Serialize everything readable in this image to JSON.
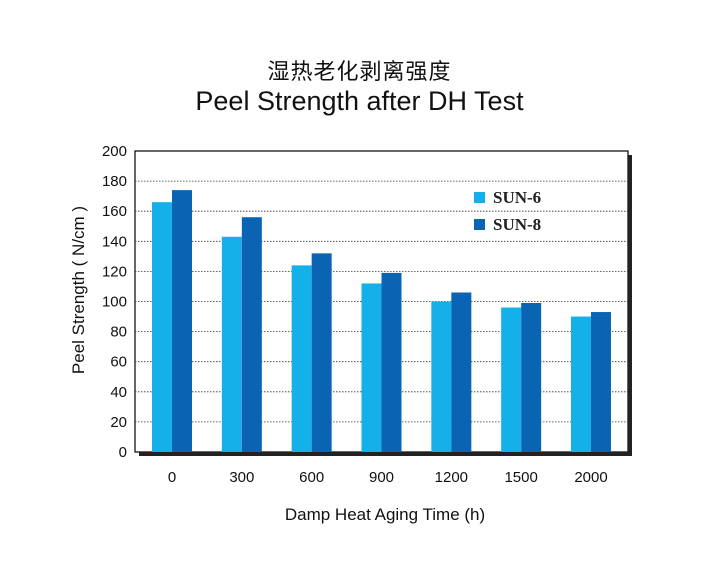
{
  "chart_data": {
    "type": "bar",
    "title": "湿热老化剥离强度",
    "subtitle": "Peel Strength after DH Test",
    "xlabel": "Damp Heat Aging Time (h)",
    "ylabel": "Peel Strength ( N/cm )",
    "ylim": [
      0,
      200
    ],
    "yticks": [
      "0",
      "20",
      "40",
      "60",
      "80",
      "100",
      "120",
      "140",
      "160",
      "180",
      "200"
    ],
    "categories": [
      "0",
      "300",
      "600",
      "900",
      "1200",
      "1500",
      "2000"
    ],
    "grid": true,
    "legend_position": "top-right",
    "series": [
      {
        "name": "SUN-6",
        "color": "#13b0ea",
        "values": [
          166,
          143,
          124,
          112,
          100,
          96,
          90
        ]
      },
      {
        "name": "SUN-8",
        "color": "#0b64b3",
        "values": [
          174,
          156,
          132,
          119,
          106,
          99,
          93
        ]
      }
    ]
  }
}
